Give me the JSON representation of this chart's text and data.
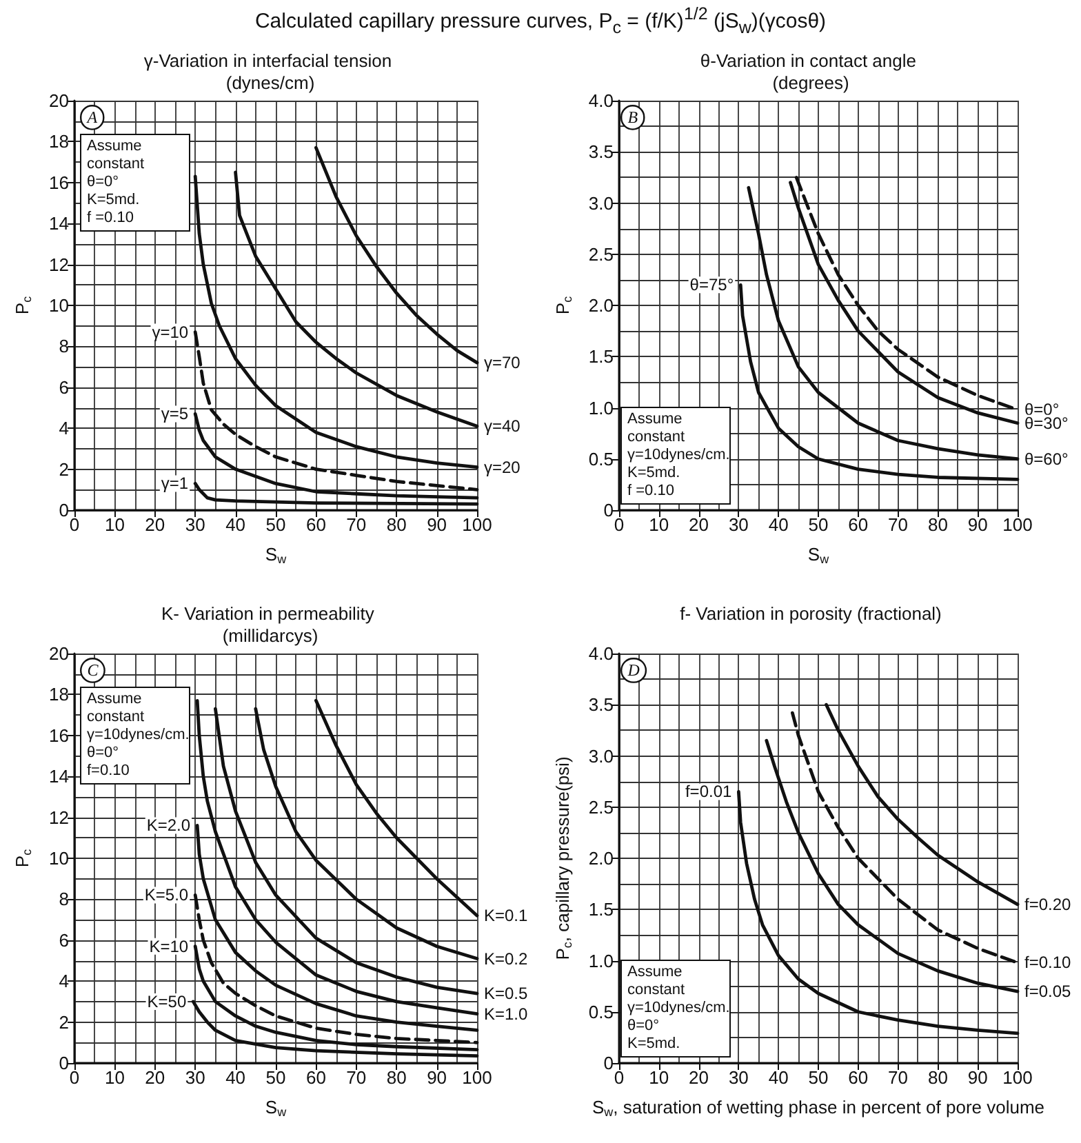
{
  "chart_data": [
    {
      "type": "line",
      "title": "Calculated capillary pressure curves, P$_{c}$ = (f/K)$^{1/2}$ (jS$_{w}$)(γcosθ)",
      "subtitle": "γ-Variation in interfacial tension (dynes/cm)",
      "xlabel": "S$_{w}$",
      "ylabel": "P$_{c}$",
      "xlim": [
        0,
        100
      ],
      "xticks": [
        0,
        10,
        20,
        30,
        40,
        50,
        60,
        70,
        80,
        90,
        100
      ],
      "ylim": [
        0,
        20
      ],
      "yticks": [
        0,
        2,
        4,
        6,
        8,
        10,
        12,
        14,
        16,
        18,
        20
      ],
      "grid": true,
      "annotations": [
        "A",
        "Assume constant\nθ=0°\nK=5md.\nf =0.10"
      ],
      "series": [
        {
          "name": "γ=70",
          "color": "#111111",
          "x": [
            60,
            65,
            70,
            75,
            80,
            85,
            90,
            95,
            100
          ],
          "values": [
            17.7,
            15.3,
            13.4,
            11.9,
            10.6,
            9.5,
            8.6,
            7.8,
            7.2
          ]
        },
        {
          "name": "γ=40",
          "color": "#111111",
          "x": [
            40,
            41,
            45,
            50,
            55,
            60,
            65,
            70,
            80,
            90,
            100
          ],
          "values": [
            16.5,
            14.4,
            12.4,
            10.8,
            9.2,
            8.2,
            7.4,
            6.7,
            5.6,
            4.8,
            4.1
          ]
        },
        {
          "name": "γ=20",
          "color": "#111111",
          "x": [
            30,
            31,
            32,
            34,
            36,
            40,
            45,
            50,
            60,
            70,
            80,
            90,
            100
          ],
          "values": [
            16.3,
            13.5,
            12,
            10.1,
            9,
            7.4,
            6.1,
            5.1,
            3.8,
            3.1,
            2.6,
            2.3,
            2.1
          ]
        },
        {
          "name": "γ=10",
          "color": "#111111",
          "line_style": "dashed",
          "x": [
            30,
            31,
            32,
            34,
            37,
            40,
            45,
            50,
            60,
            70,
            80,
            90,
            100
          ],
          "values": [
            8.7,
            7.5,
            6.2,
            4.9,
            4.2,
            3.7,
            3.1,
            2.6,
            2,
            1.7,
            1.4,
            1.2,
            1
          ]
        },
        {
          "name": "γ=5",
          "color": "#111111",
          "x": [
            30,
            31,
            32,
            35,
            40,
            50,
            60,
            70,
            80,
            100
          ],
          "values": [
            4.7,
            3.9,
            3.4,
            2.6,
            2,
            1.3,
            0.9,
            0.8,
            0.7,
            0.6
          ]
        },
        {
          "name": "γ=1",
          "color": "#111111",
          "x": [
            30,
            31,
            33,
            35,
            40,
            60,
            100
          ],
          "values": [
            1.3,
            1,
            0.6,
            0.5,
            0.45,
            0.35,
            0.3
          ]
        }
      ]
    },
    {
      "type": "line",
      "subtitle": "θ-Variation in contact angle (degrees)",
      "xlabel": "S$_{w}$",
      "ylabel": "P$_{c}$",
      "xlim": [
        0,
        100
      ],
      "xticks": [
        0,
        10,
        20,
        30,
        40,
        50,
        60,
        70,
        80,
        90,
        100
      ],
      "ylim": [
        0,
        4
      ],
      "yticks": [
        0,
        0.5,
        {
          "value": 1,
          "label": "1.0"
        },
        1.5,
        {
          "value": 2,
          "label": "2.0"
        },
        2.5,
        {
          "value": 3,
          "label": "3.0"
        },
        3.5,
        {
          "value": 4,
          "label": "4.0"
        }
      ],
      "grid": true,
      "annotations": [
        "B",
        "Assume constant\nγ=10dynes/cm.\nK=5md.\nf =0.10"
      ],
      "series": [
        {
          "name": "θ=0°",
          "color": "#111111",
          "line_style": "dashed",
          "x": [
            44.5,
            47,
            50,
            55,
            60,
            65,
            70,
            80,
            90,
            100
          ],
          "values": [
            3.25,
            3,
            2.7,
            2.3,
            2,
            1.75,
            1.57,
            1.3,
            1.12,
            0.98
          ]
        },
        {
          "name": "θ=30°",
          "color": "#111111",
          "x": [
            43,
            45,
            50,
            55,
            60,
            70,
            80,
            90,
            100
          ],
          "values": [
            3.2,
            2.95,
            2.4,
            2.05,
            1.75,
            1.35,
            1.1,
            0.95,
            0.85
          ]
        },
        {
          "name": "θ=60°",
          "color": "#111111",
          "x": [
            32.5,
            35,
            37,
            40,
            45,
            50,
            60,
            70,
            80,
            90,
            100
          ],
          "values": [
            3.15,
            2.7,
            2.3,
            1.85,
            1.4,
            1.15,
            0.85,
            0.68,
            0.6,
            0.54,
            0.5
          ]
        },
        {
          "name": "θ=75°",
          "color": "#111111",
          "x": [
            30.5,
            31,
            33,
            35,
            40,
            45,
            50,
            60,
            70,
            80,
            100
          ],
          "values": [
            2.2,
            1.9,
            1.45,
            1.15,
            0.8,
            0.62,
            0.5,
            0.4,
            0.35,
            0.32,
            0.3
          ]
        }
      ]
    },
    {
      "type": "line",
      "subtitle": "K- Variation in permeability (millidarcys)",
      "xlabel": "S$_{w}$",
      "ylabel": "P$_{c}$",
      "xlim": [
        0,
        100
      ],
      "xticks": [
        0,
        10,
        20,
        30,
        40,
        50,
        60,
        70,
        80,
        90,
        100
      ],
      "ylim": [
        0,
        20
      ],
      "yticks": [
        0,
        2,
        4,
        6,
        8,
        10,
        12,
        14,
        16,
        18,
        20
      ],
      "grid": true,
      "annotations": [
        "C",
        "Assume constant\nγ=10dynes/cm.\nθ=0°\nf=0.10"
      ],
      "series": [
        {
          "name": "K=0.1",
          "color": "#111111",
          "x": [
            60,
            65,
            70,
            75,
            80,
            85,
            90,
            95,
            100
          ],
          "values": [
            17.7,
            15.5,
            13.6,
            12.2,
            11,
            10,
            9,
            8.1,
            7.2
          ]
        },
        {
          "name": "K=0.2",
          "color": "#111111",
          "x": [
            45,
            47,
            50,
            55,
            60,
            70,
            80,
            90,
            100
          ],
          "values": [
            17.3,
            15.3,
            13.5,
            11.3,
            9.9,
            8,
            6.6,
            5.7,
            5.1
          ]
        },
        {
          "name": "K=0.5",
          "color": "#111111",
          "x": [
            35,
            37,
            40,
            45,
            50,
            60,
            70,
            80,
            90,
            100
          ],
          "values": [
            17.3,
            14.5,
            12.3,
            9.8,
            8.2,
            6.1,
            4.9,
            4.2,
            3.7,
            3.4
          ]
        },
        {
          "name": "K=1.0",
          "color": "#111111",
          "x": [
            30.5,
            31,
            32,
            33,
            35,
            40,
            45,
            50,
            60,
            70,
            80,
            90,
            100
          ],
          "values": [
            17.7,
            16,
            14,
            12.8,
            11.3,
            8.6,
            7,
            5.9,
            4.3,
            3.5,
            3,
            2.7,
            2.4
          ]
        },
        {
          "name": "K=2.0",
          "color": "#111111",
          "x": [
            30.5,
            31,
            32,
            35,
            40,
            45,
            50,
            60,
            70,
            80,
            90,
            100
          ],
          "values": [
            11.6,
            10.2,
            9,
            7,
            5.4,
            4.5,
            3.8,
            2.9,
            2.3,
            2,
            1.8,
            1.6
          ]
        },
        {
          "name": "K=5.0",
          "color": "#111111",
          "line_style": "dashed",
          "x": [
            30,
            31,
            32,
            34,
            37,
            40,
            45,
            50,
            60,
            70,
            80,
            90,
            100
          ],
          "values": [
            8.2,
            7,
            6,
            4.9,
            3.9,
            3.4,
            2.8,
            2.3,
            1.7,
            1.4,
            1.2,
            1.1,
            1
          ]
        },
        {
          "name": "K=10",
          "color": "#111111",
          "x": [
            30,
            31,
            32,
            35,
            40,
            45,
            50,
            60,
            70,
            80,
            100
          ],
          "values": [
            5.7,
            4.6,
            4,
            3,
            2.3,
            1.8,
            1.5,
            1.1,
            0.9,
            0.8,
            0.65
          ]
        },
        {
          "name": "K=50",
          "color": "#111111",
          "x": [
            29.5,
            31,
            33,
            35,
            40,
            50,
            60,
            80,
            100
          ],
          "values": [
            3,
            2.5,
            2,
            1.6,
            1.1,
            0.75,
            0.6,
            0.45,
            0.35
          ]
        }
      ]
    },
    {
      "type": "line",
      "subtitle": "f- Variation in porosity (fractional)",
      "xlabel": "S$_{w}$, saturation of wetting phase in percent of pore volume",
      "ylabel": "P$_{c}$, capillary pressure(psi)",
      "xlim": [
        0,
        100
      ],
      "xticks": [
        0,
        10,
        20,
        30,
        40,
        50,
        60,
        70,
        80,
        90,
        100
      ],
      "ylim": [
        0,
        4
      ],
      "yticks": [
        0,
        0.5,
        {
          "value": 1,
          "label": "1.0"
        },
        1.5,
        {
          "value": 2,
          "label": "2.0"
        },
        2.5,
        {
          "value": 3,
          "label": "3.0"
        },
        3.5,
        {
          "value": 4,
          "label": "4.0"
        }
      ],
      "grid": true,
      "annotations": [
        "D",
        "Assume constant\nγ=10dynes/cm.\nθ=0°\nK=5md."
      ],
      "series": [
        {
          "name": "f=0.20",
          "color": "#111111",
          "x": [
            52,
            55,
            60,
            65,
            70,
            75,
            80,
            90,
            100
          ],
          "values": [
            3.5,
            3.25,
            2.9,
            2.6,
            2.38,
            2.2,
            2.03,
            1.77,
            1.55
          ]
        },
        {
          "name": "f=0.10",
          "color": "#111111",
          "line_style": "dashed",
          "x": [
            43.5,
            45,
            50,
            55,
            60,
            70,
            80,
            90,
            100
          ],
          "values": [
            3.42,
            3.2,
            2.65,
            2.3,
            2,
            1.6,
            1.3,
            1.12,
            0.98
          ]
        },
        {
          "name": "f=0.05",
          "color": "#111111",
          "x": [
            37,
            39,
            42,
            45,
            50,
            55,
            60,
            70,
            80,
            90,
            100
          ],
          "values": [
            3.15,
            2.9,
            2.55,
            2.25,
            1.85,
            1.55,
            1.35,
            1.07,
            0.9,
            0.78,
            0.7
          ]
        },
        {
          "name": "f=0.01",
          "color": "#111111",
          "x": [
            30,
            30.5,
            32,
            34,
            36,
            40,
            45,
            50,
            60,
            70,
            80,
            90,
            100
          ],
          "values": [
            2.65,
            2.35,
            1.95,
            1.6,
            1.35,
            1.05,
            0.82,
            0.68,
            0.5,
            0.42,
            0.36,
            0.32,
            0.29
          ]
        }
      ]
    }
  ]
}
